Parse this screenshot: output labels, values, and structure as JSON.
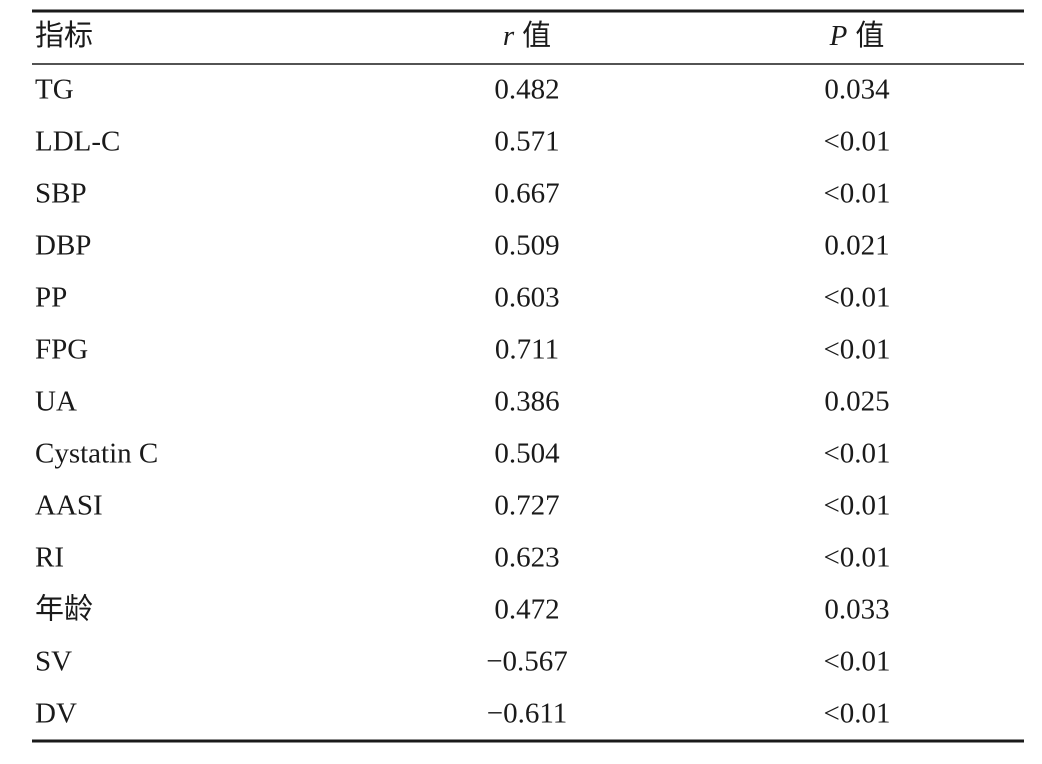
{
  "table": {
    "header": [
      {
        "text": "指标"
      },
      {
        "symbol": "r",
        "text": "值"
      },
      {
        "symbol": "P",
        "text": "值"
      }
    ],
    "rows": [
      [
        "TG",
        "0.482",
        "0.034"
      ],
      [
        "LDL-C",
        "0.571",
        "<0.01"
      ],
      [
        "SBP",
        "0.667",
        "<0.01"
      ],
      [
        "DBP",
        "0.509",
        "0.021"
      ],
      [
        "PP",
        "0.603",
        "<0.01"
      ],
      [
        "FPG",
        "0.711",
        "<0.01"
      ],
      [
        "UA",
        "0.386",
        "0.025"
      ],
      [
        "Cystatin C",
        "0.504",
        "<0.01"
      ],
      [
        "AASI",
        "0.727",
        "<0.01"
      ],
      [
        "RI",
        "0.623",
        "<0.01"
      ],
      [
        "年龄",
        "0.472",
        "0.033"
      ],
      [
        "SV",
        "−0.567",
        "<0.01"
      ],
      [
        "DV",
        "−0.611",
        "<0.01"
      ]
    ]
  }
}
